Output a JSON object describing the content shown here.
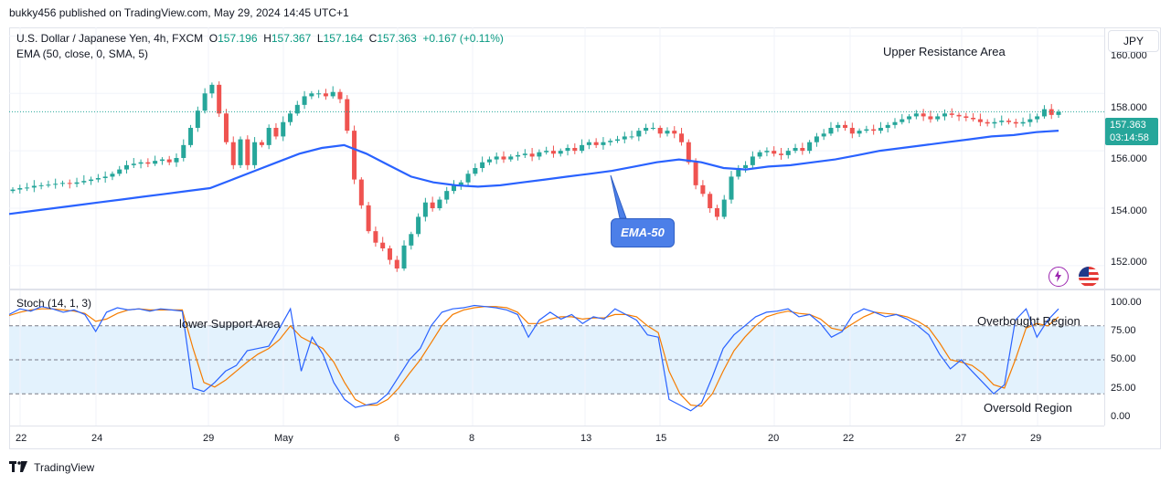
{
  "header": {
    "published_text": "bukky456 published on TradingView.com, May 29, 2024 14:45 UTC+1"
  },
  "legend": {
    "symbol": "U.S. Dollar / Japanese Yen, 4h, FXCM",
    "o_label": "O",
    "o_value": "157.196",
    "h_label": "H",
    "h_value": "157.367",
    "l_label": "L",
    "l_value": "157.164",
    "c_label": "C",
    "c_value": "157.363",
    "change": "+0.167 (+0.11%)",
    "ema_label": "EMA (50, close, 0, SMA, 5)",
    "stoch_label": "Stoch (14, 1, 3)"
  },
  "price_axis": {
    "currency": "JPY",
    "labels": [
      "160.000",
      "158.000",
      "156.000",
      "154.000",
      "152.000"
    ],
    "current_price": "157.363",
    "countdown": "03:14:58"
  },
  "stoch_axis": {
    "labels": [
      "100.00",
      "75.00",
      "50.00",
      "25.00",
      "0.00"
    ]
  },
  "time_axis": {
    "labels": [
      "22",
      "24",
      "29",
      "May",
      "6",
      "8",
      "13",
      "15",
      "20",
      "22",
      "27",
      "29"
    ]
  },
  "annotations": {
    "upper_resistance": "Upper Resistance Area",
    "lower_support": "lower Support Area",
    "overbought": "Overbought Region",
    "oversold": "Oversold Region",
    "ema_callout": "EMA-50"
  },
  "footer": {
    "brand": "TradingView"
  },
  "colors": {
    "bull": "#26a69a",
    "bear": "#ef5350",
    "ema": "#2962ff",
    "stoch_k": "#2962ff",
    "stoch_d": "#f57c00",
    "stoch_band": "#e3f2fd"
  },
  "chart_data": [
    {
      "type": "candlestick",
      "title": "U.S. Dollar / Japanese Yen, 4h, FXCM",
      "ylim": [
        151.2,
        160.3
      ],
      "y_ticks": [
        152,
        154,
        156,
        158,
        160
      ],
      "x_range": [
        "Apr 22",
        "May 29"
      ],
      "series": [
        {
          "name": "USDJPY",
          "closes": [
            154.65,
            154.7,
            154.72,
            154.78,
            154.8,
            154.82,
            154.85,
            154.88,
            154.85,
            154.9,
            154.95,
            155.0,
            155.05,
            155.1,
            155.2,
            155.35,
            155.5,
            155.55,
            155.6,
            155.55,
            155.65,
            155.7,
            155.6,
            155.75,
            156.2,
            156.8,
            157.4,
            158.0,
            158.3,
            157.3,
            156.3,
            155.5,
            156.4,
            155.5,
            156.3,
            156.2,
            156.8,
            156.5,
            157.0,
            157.3,
            157.6,
            157.9,
            158.0,
            158.0,
            157.9,
            158.05,
            157.8,
            156.7,
            155.0,
            154.1,
            153.2,
            152.8,
            152.6,
            152.2,
            151.9,
            152.7,
            153.1,
            153.7,
            154.2,
            154.0,
            154.3,
            154.6,
            154.8,
            154.9,
            155.2,
            155.4,
            155.6,
            155.7,
            155.8,
            155.7,
            155.8,
            155.85,
            155.9,
            155.8,
            155.95,
            156.0,
            155.9,
            156.0,
            156.1,
            156.0,
            156.2,
            156.3,
            156.2,
            156.3,
            156.35,
            156.4,
            156.5,
            156.5,
            156.7,
            156.8,
            156.8,
            156.6,
            156.7,
            156.6,
            156.3,
            155.6,
            154.8,
            154.5,
            154.0,
            153.7,
            154.3,
            155.1,
            155.4,
            155.5,
            155.8,
            155.95,
            156.0,
            155.9,
            155.85,
            156.0,
            156.1,
            156.0,
            156.3,
            156.5,
            156.6,
            156.8,
            156.9,
            156.8,
            156.6,
            156.7,
            156.75,
            156.7,
            156.8,
            156.9,
            157.0,
            157.1,
            157.2,
            157.3,
            157.2,
            157.1,
            157.2,
            157.3,
            157.25,
            157.2,
            157.15,
            157.1,
            157.0,
            156.95,
            157.0,
            157.05,
            157.0,
            156.95,
            157.0,
            157.1,
            157.2,
            157.45,
            157.25,
            157.36
          ]
        },
        {
          "name": "EMA (50, close, 0, SMA, 5)",
          "values": [
            153.8,
            153.9,
            154.0,
            154.1,
            154.2,
            154.3,
            154.4,
            154.5,
            154.6,
            154.7,
            155.0,
            155.3,
            155.6,
            155.9,
            156.1,
            156.2,
            155.9,
            155.5,
            155.1,
            154.9,
            154.8,
            154.75,
            154.8,
            154.9,
            155.0,
            155.1,
            155.2,
            155.3,
            155.45,
            155.6,
            155.7,
            155.6,
            155.4,
            155.35,
            155.45,
            155.5,
            155.6,
            155.7,
            155.85,
            156.0,
            156.1,
            156.2,
            156.3,
            156.4,
            156.5,
            156.55,
            156.65,
            156.7
          ],
          "x_days": [
            "Apr 22",
            "Apr 23",
            "Apr 24",
            "Apr 25",
            "Apr 26",
            "Apr 26",
            "Apr 29",
            "Apr 29",
            "Apr 30",
            "Apr 30",
            "May 1",
            "May 1",
            "May 2",
            "May 2",
            "May 2",
            "May 3",
            "May 3",
            "May 6",
            "May 6",
            "May 7",
            "May 7",
            "May 8",
            "May 9",
            "May 9",
            "May 10",
            "May 10",
            "May 13",
            "May 13",
            "May 14",
            "May 14",
            "May 15",
            "May 15",
            "May 16",
            "May 17",
            "May 17",
            "May 20",
            "May 20",
            "May 21",
            "May 21",
            "May 22",
            "May 23",
            "May 23",
            "May 24",
            "May 27",
            "May 27",
            "May 28",
            "May 28",
            "May 29"
          ]
        }
      ]
    },
    {
      "type": "line",
      "title": "Stoch (14, 1, 3)",
      "ylim": [
        0,
        100
      ],
      "y_ticks": [
        0,
        25,
        50,
        75,
        100
      ],
      "bands": {
        "upper": 80,
        "lower": 20
      },
      "series": [
        {
          "name": "%K",
          "values": [
            90,
            95,
            93,
            97,
            95,
            92,
            94,
            90,
            75,
            92,
            96,
            94,
            95,
            93,
            95,
            94,
            93,
            25,
            22,
            30,
            40,
            45,
            58,
            60,
            62,
            78,
            95,
            40,
            70,
            55,
            30,
            15,
            8,
            10,
            12,
            20,
            35,
            50,
            60,
            80,
            92,
            95,
            96,
            98,
            97,
            96,
            94,
            90,
            70,
            85,
            92,
            86,
            90,
            82,
            88,
            86,
            95,
            90,
            85,
            72,
            70,
            15,
            10,
            5,
            12,
            35,
            60,
            72,
            80,
            88,
            92,
            93,
            95,
            88,
            90,
            82,
            70,
            75,
            90,
            95,
            92,
            88,
            90,
            86,
            80,
            72,
            55,
            42,
            50,
            40,
            30,
            20,
            28,
            85,
            95,
            70,
            85,
            95
          ]
        },
        {
          "name": "%D",
          "values": [
            89,
            92,
            94,
            95,
            95,
            94,
            93,
            91,
            84,
            86,
            91,
            94,
            95,
            94,
            94,
            94,
            94,
            60,
            30,
            26,
            32,
            40,
            48,
            55,
            60,
            68,
            80,
            70,
            65,
            60,
            48,
            30,
            15,
            10,
            10,
            15,
            25,
            38,
            50,
            65,
            80,
            90,
            94,
            96,
            97,
            97,
            96,
            92,
            82,
            82,
            86,
            88,
            88,
            86,
            87,
            87,
            90,
            90,
            88,
            80,
            74,
            40,
            20,
            10,
            9,
            20,
            40,
            58,
            70,
            80,
            88,
            91,
            93,
            91,
            90,
            86,
            78,
            76,
            82,
            88,
            92,
            91,
            90,
            88,
            84,
            78,
            65,
            50,
            48,
            45,
            38,
            28,
            25,
            50,
            78,
            82,
            80,
            88
          ]
        }
      ]
    }
  ]
}
